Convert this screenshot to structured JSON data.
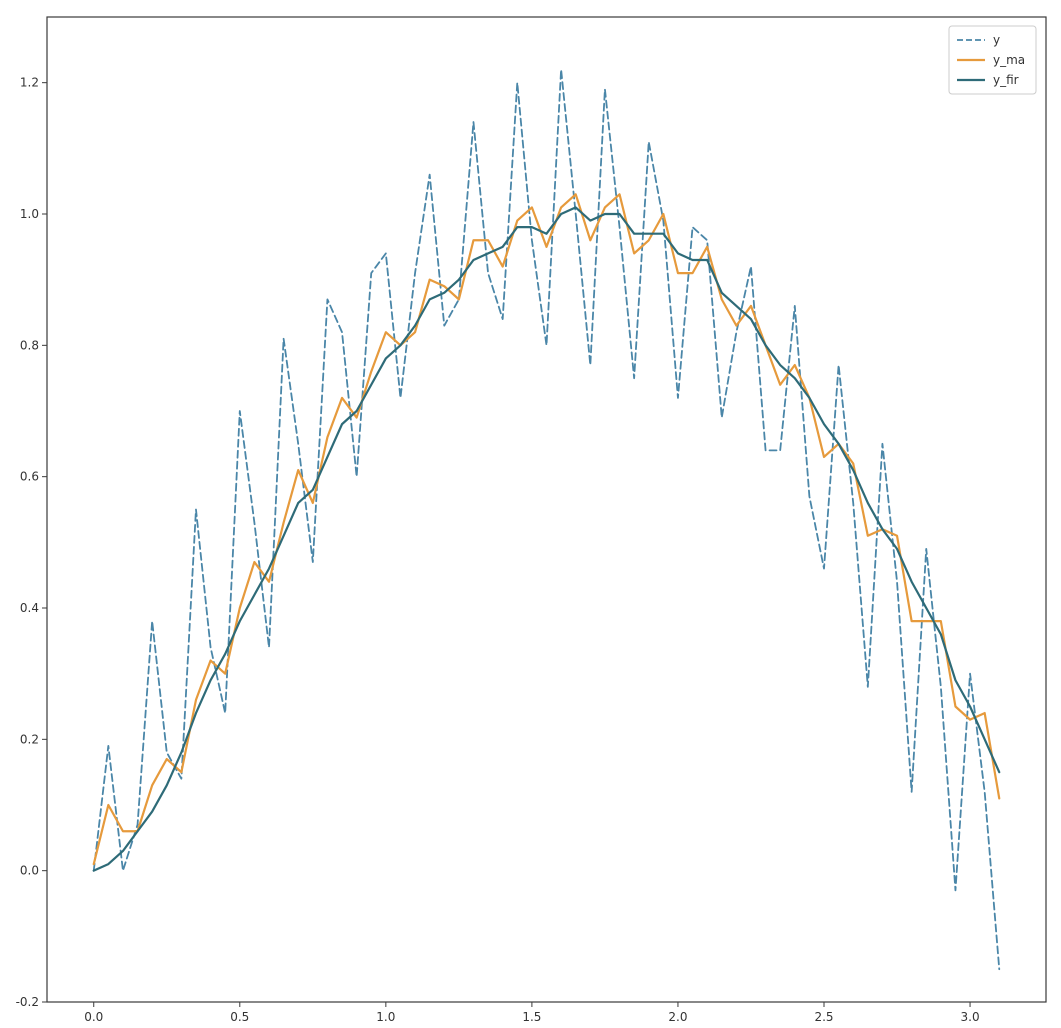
{
  "chart_data": {
    "type": "line",
    "title": "",
    "xlabel": "",
    "ylabel": "",
    "xlim": [
      -0.16,
      3.26
    ],
    "ylim": [
      -0.2,
      1.3
    ],
    "x_ticks": [
      0.0,
      0.5,
      1.0,
      1.5,
      2.0,
      2.5,
      3.0
    ],
    "x_tick_labels": [
      "0.0",
      "0.5",
      "1.0",
      "1.5",
      "2.0",
      "2.5",
      "3.0"
    ],
    "y_ticks": [
      -0.2,
      0.0,
      0.2,
      0.4,
      0.6,
      0.8,
      1.0,
      1.2
    ],
    "y_tick_labels": [
      "-0.2",
      "0.0",
      "0.2",
      "0.4",
      "0.6",
      "0.8",
      "1.0",
      "1.2"
    ],
    "grid": false,
    "legend_position": "top-right",
    "x": [
      0.0,
      0.05,
      0.1,
      0.15,
      0.2,
      0.25,
      0.3,
      0.35,
      0.4,
      0.45,
      0.5,
      0.55,
      0.6,
      0.65,
      0.7,
      0.75,
      0.8,
      0.85,
      0.9,
      0.95,
      1.0,
      1.05,
      1.1,
      1.15,
      1.2,
      1.25,
      1.3,
      1.35,
      1.4,
      1.45,
      1.5,
      1.55,
      1.6,
      1.65,
      1.7,
      1.75,
      1.8,
      1.85,
      1.9,
      1.95,
      2.0,
      2.05,
      2.1,
      2.15,
      2.2,
      2.25,
      2.3,
      2.35,
      2.4,
      2.45,
      2.5,
      2.55,
      2.6,
      2.65,
      2.7,
      2.75,
      2.8,
      2.85,
      2.9,
      2.95,
      3.0,
      3.05,
      3.1
    ],
    "series": [
      {
        "name": "y",
        "color": "#4a86a8",
        "style": "dashed",
        "values": [
          0.0,
          0.19,
          0.0,
          0.07,
          0.38,
          0.18,
          0.14,
          0.55,
          0.34,
          0.24,
          0.7,
          0.53,
          0.34,
          0.81,
          0.65,
          0.47,
          0.87,
          0.82,
          0.6,
          0.91,
          0.94,
          0.72,
          0.91,
          1.06,
          0.83,
          0.87,
          1.14,
          0.91,
          0.84,
          1.2,
          0.96,
          0.8,
          1.22,
          1.0,
          0.77,
          1.19,
          0.98,
          0.75,
          1.11,
          0.99,
          0.72,
          0.98,
          0.96,
          0.69,
          0.82,
          0.92,
          0.64,
          0.64,
          0.86,
          0.57,
          0.46,
          0.77,
          0.56,
          0.28,
          0.65,
          0.44,
          0.12,
          0.49,
          0.28,
          -0.03,
          0.3,
          0.12,
          -0.15
        ]
      },
      {
        "name": "y_ma",
        "color": "#e69a3c",
        "style": "solid",
        "values": [
          0.01,
          0.1,
          0.06,
          0.06,
          0.13,
          0.17,
          0.15,
          0.26,
          0.32,
          0.3,
          0.4,
          0.47,
          0.44,
          0.53,
          0.61,
          0.56,
          0.66,
          0.72,
          0.69,
          0.76,
          0.82,
          0.8,
          0.82,
          0.9,
          0.89,
          0.87,
          0.96,
          0.96,
          0.92,
          0.99,
          1.01,
          0.95,
          1.01,
          1.03,
          0.96,
          1.01,
          1.03,
          0.94,
          0.96,
          1.0,
          0.91,
          0.91,
          0.95,
          0.87,
          0.83,
          0.86,
          0.8,
          0.74,
          0.77,
          0.72,
          0.63,
          0.65,
          0.62,
          0.51,
          0.52,
          0.51,
          0.38,
          0.38,
          0.38,
          0.25,
          0.23,
          0.24,
          0.11
        ]
      },
      {
        "name": "y_fir",
        "color": "#2e6b78",
        "style": "solid",
        "values": [
          0.0,
          0.01,
          0.03,
          0.06,
          0.09,
          0.13,
          0.18,
          0.24,
          0.29,
          0.33,
          0.38,
          0.42,
          0.46,
          0.51,
          0.56,
          0.58,
          0.63,
          0.68,
          0.7,
          0.74,
          0.78,
          0.8,
          0.83,
          0.87,
          0.88,
          0.9,
          0.93,
          0.94,
          0.95,
          0.98,
          0.98,
          0.97,
          1.0,
          1.01,
          0.99,
          1.0,
          1.0,
          0.97,
          0.97,
          0.97,
          0.94,
          0.93,
          0.93,
          0.88,
          0.86,
          0.84,
          0.8,
          0.77,
          0.75,
          0.72,
          0.68,
          0.65,
          0.61,
          0.56,
          0.52,
          0.49,
          0.44,
          0.4,
          0.36,
          0.29,
          0.25,
          0.2,
          0.15
        ]
      }
    ]
  }
}
